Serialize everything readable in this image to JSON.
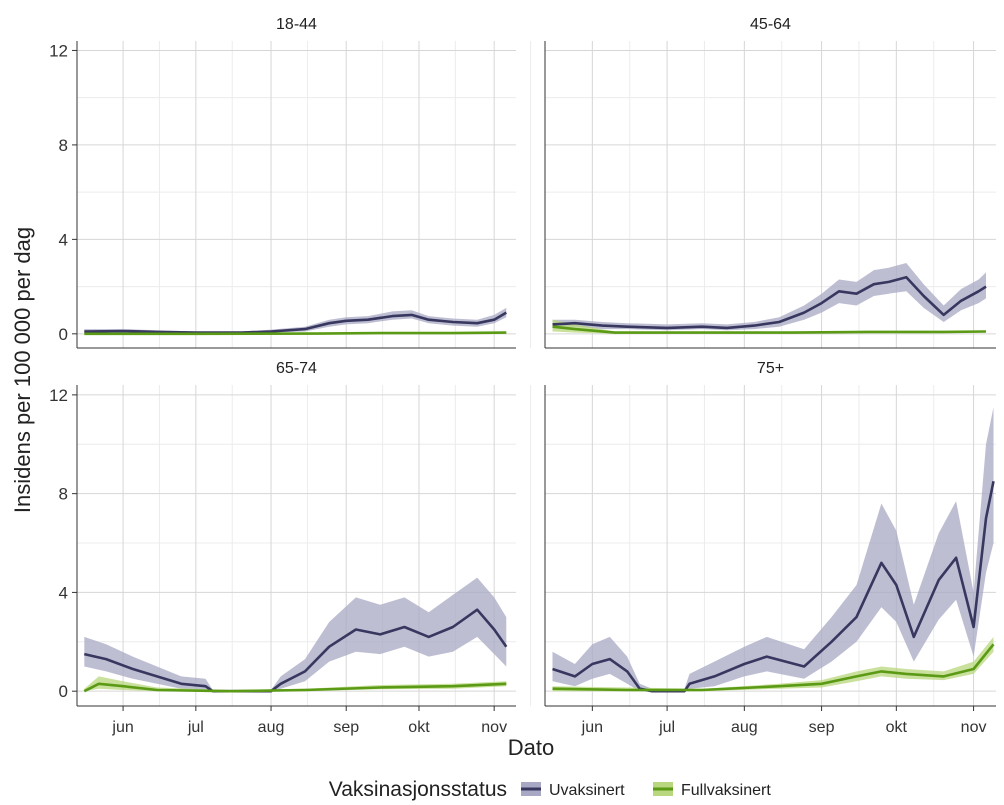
{
  "chart_data": {
    "type": "line",
    "ylabel": "Insidens per 100 000 per dag",
    "xlabel": "Dato",
    "ylim": [
      -0.6,
      12.4
    ],
    "yticks": [
      0,
      4,
      8,
      12
    ],
    "xlim": [
      "2021-05-13",
      "2021-11-10"
    ],
    "xticks": [
      {
        "label": "jun",
        "date": "2021-06-01"
      },
      {
        "label": "jul",
        "date": "2021-07-01"
      },
      {
        "label": "aug",
        "date": "2021-08-01"
      },
      {
        "label": "sep",
        "date": "2021-09-01"
      },
      {
        "label": "okt",
        "date": "2021-10-01"
      },
      {
        "label": "nov",
        "date": "2021-11-01"
      }
    ],
    "grid": true,
    "legend": {
      "position": "bottom",
      "title": "Vaksinasjonsstatus",
      "entries": [
        {
          "name": "Uvaksinert",
          "color": "#38375f",
          "fill": "#a8a8c4"
        },
        {
          "name": "Fullvaksinert",
          "color": "#5a9a14",
          "fill": "#b8d77e"
        }
      ]
    },
    "panels": [
      {
        "title": "18-44",
        "series": [
          {
            "name": "Uvaksinert",
            "points": [
              [
                "2021-05-16",
                0.1,
                0.05,
                0.2
              ],
              [
                "2021-06-01",
                0.12,
                0.05,
                0.2
              ],
              [
                "2021-06-15",
                0.08,
                0.03,
                0.15
              ],
              [
                "2021-07-01",
                0.05,
                0.02,
                0.1
              ],
              [
                "2021-07-20",
                0.05,
                0.02,
                0.1
              ],
              [
                "2021-08-01",
                0.1,
                0.05,
                0.18
              ],
              [
                "2021-08-15",
                0.2,
                0.1,
                0.3
              ],
              [
                "2021-08-25",
                0.45,
                0.3,
                0.6
              ],
              [
                "2021-09-01",
                0.55,
                0.4,
                0.7
              ],
              [
                "2021-09-10",
                0.6,
                0.45,
                0.75
              ],
              [
                "2021-09-20",
                0.75,
                0.6,
                0.95
              ],
              [
                "2021-09-28",
                0.8,
                0.65,
                1.0
              ],
              [
                "2021-10-05",
                0.6,
                0.45,
                0.75
              ],
              [
                "2021-10-15",
                0.5,
                0.35,
                0.65
              ],
              [
                "2021-10-25",
                0.45,
                0.3,
                0.6
              ],
              [
                "2021-11-01",
                0.6,
                0.45,
                0.8
              ],
              [
                "2021-11-06",
                0.9,
                0.7,
                1.1
              ]
            ]
          },
          {
            "name": "Fullvaksinert",
            "points": [
              [
                "2021-05-16",
                0.0,
                0.0,
                0.02
              ],
              [
                "2021-07-01",
                0.0,
                0.0,
                0.02
              ],
              [
                "2021-08-20",
                0.01,
                0.0,
                0.03
              ],
              [
                "2021-09-15",
                0.03,
                0.01,
                0.05
              ],
              [
                "2021-10-15",
                0.03,
                0.01,
                0.05
              ],
              [
                "2021-11-06",
                0.05,
                0.03,
                0.08
              ]
            ]
          }
        ]
      },
      {
        "title": "45-64",
        "series": [
          {
            "name": "Uvaksinert",
            "points": [
              [
                "2021-05-16",
                0.4,
                0.3,
                0.6
              ],
              [
                "2021-05-25",
                0.45,
                0.3,
                0.6
              ],
              [
                "2021-06-05",
                0.35,
                0.2,
                0.5
              ],
              [
                "2021-06-15",
                0.3,
                0.2,
                0.45
              ],
              [
                "2021-07-01",
                0.25,
                0.15,
                0.4
              ],
              [
                "2021-07-15",
                0.3,
                0.2,
                0.45
              ],
              [
                "2021-07-25",
                0.25,
                0.15,
                0.4
              ],
              [
                "2021-08-05",
                0.35,
                0.2,
                0.5
              ],
              [
                "2021-08-15",
                0.5,
                0.3,
                0.7
              ],
              [
                "2021-08-25",
                0.9,
                0.6,
                1.2
              ],
              [
                "2021-09-01",
                1.3,
                0.9,
                1.7
              ],
              [
                "2021-09-08",
                1.8,
                1.3,
                2.3
              ],
              [
                "2021-09-15",
                1.7,
                1.2,
                2.2
              ],
              [
                "2021-09-22",
                2.1,
                1.6,
                2.7
              ],
              [
                "2021-09-28",
                2.2,
                1.7,
                2.8
              ],
              [
                "2021-10-05",
                2.4,
                1.8,
                3.0
              ],
              [
                "2021-10-12",
                1.6,
                1.1,
                2.1
              ],
              [
                "2021-10-20",
                0.8,
                0.5,
                1.2
              ],
              [
                "2021-10-27",
                1.4,
                1.0,
                1.9
              ],
              [
                "2021-11-03",
                1.8,
                1.3,
                2.3
              ],
              [
                "2021-11-06",
                2.0,
                1.5,
                2.6
              ]
            ]
          },
          {
            "name": "Fullvaksinert",
            "points": [
              [
                "2021-05-16",
                0.3,
                0.1,
                0.6
              ],
              [
                "2021-05-25",
                0.2,
                0.05,
                0.4
              ],
              [
                "2021-06-10",
                0.05,
                0.0,
                0.1
              ],
              [
                "2021-07-15",
                0.05,
                0.02,
                0.08
              ],
              [
                "2021-08-20",
                0.05,
                0.02,
                0.08
              ],
              [
                "2021-09-20",
                0.08,
                0.05,
                0.12
              ],
              [
                "2021-10-20",
                0.08,
                0.05,
                0.12
              ],
              [
                "2021-11-06",
                0.1,
                0.06,
                0.14
              ]
            ]
          }
        ]
      },
      {
        "title": "65-74",
        "series": [
          {
            "name": "Uvaksinert",
            "points": [
              [
                "2021-05-16",
                1.5,
                1.0,
                2.2
              ],
              [
                "2021-05-25",
                1.3,
                0.8,
                1.9
              ],
              [
                "2021-06-05",
                0.9,
                0.5,
                1.4
              ],
              [
                "2021-06-15",
                0.6,
                0.3,
                1.0
              ],
              [
                "2021-06-25",
                0.3,
                0.1,
                0.6
              ],
              [
                "2021-07-05",
                0.2,
                0.05,
                0.5
              ],
              [
                "2021-07-08",
                0.0,
                0.0,
                0.05
              ],
              [
                "2021-08-01",
                0.0,
                0.0,
                0.05
              ],
              [
                "2021-08-05",
                0.3,
                0.1,
                0.6
              ],
              [
                "2021-08-15",
                0.8,
                0.4,
                1.3
              ],
              [
                "2021-08-25",
                1.8,
                1.2,
                2.8
              ],
              [
                "2021-09-05",
                2.5,
                1.6,
                3.8
              ],
              [
                "2021-09-15",
                2.3,
                1.5,
                3.5
              ],
              [
                "2021-09-25",
                2.6,
                1.8,
                3.8
              ],
              [
                "2021-10-05",
                2.2,
                1.4,
                3.2
              ],
              [
                "2021-10-15",
                2.6,
                1.6,
                3.9
              ],
              [
                "2021-10-25",
                3.3,
                2.2,
                4.6
              ],
              [
                "2021-11-01",
                2.5,
                1.5,
                3.8
              ],
              [
                "2021-11-06",
                1.8,
                1.0,
                3.0
              ]
            ]
          },
          {
            "name": "Fullvaksinert",
            "points": [
              [
                "2021-05-16",
                0.0,
                0.0,
                0.1
              ],
              [
                "2021-05-22",
                0.3,
                0.1,
                0.6
              ],
              [
                "2021-06-01",
                0.2,
                0.05,
                0.4
              ],
              [
                "2021-06-15",
                0.05,
                0.0,
                0.15
              ],
              [
                "2021-07-15",
                0.0,
                0.0,
                0.05
              ],
              [
                "2021-08-15",
                0.05,
                0.0,
                0.1
              ],
              [
                "2021-09-15",
                0.15,
                0.08,
                0.25
              ],
              [
                "2021-10-15",
                0.2,
                0.1,
                0.3
              ],
              [
                "2021-11-06",
                0.3,
                0.2,
                0.4
              ]
            ]
          }
        ]
      },
      {
        "title": "75+",
        "series": [
          {
            "name": "Uvaksinert",
            "points": [
              [
                "2021-05-16",
                0.9,
                0.4,
                1.6
              ],
              [
                "2021-05-25",
                0.6,
                0.2,
                1.1
              ],
              [
                "2021-06-01",
                1.1,
                0.5,
                1.9
              ],
              [
                "2021-06-08",
                1.3,
                0.7,
                2.2
              ],
              [
                "2021-06-15",
                0.8,
                0.3,
                1.4
              ],
              [
                "2021-06-20",
                0.1,
                0.0,
                0.3
              ],
              [
                "2021-06-25",
                0.0,
                0.0,
                0.1
              ],
              [
                "2021-07-08",
                0.0,
                0.0,
                0.1
              ],
              [
                "2021-07-10",
                0.3,
                0.1,
                0.7
              ],
              [
                "2021-07-20",
                0.6,
                0.2,
                1.2
              ],
              [
                "2021-08-01",
                1.1,
                0.6,
                1.8
              ],
              [
                "2021-08-10",
                1.4,
                0.8,
                2.2
              ],
              [
                "2021-08-25",
                1.0,
                0.5,
                1.7
              ],
              [
                "2021-09-05",
                2.0,
                1.2,
                3.0
              ],
              [
                "2021-09-15",
                3.0,
                2.0,
                4.3
              ],
              [
                "2021-09-25",
                5.2,
                3.4,
                7.6
              ],
              [
                "2021-10-01",
                4.3,
                2.8,
                6.5
              ],
              [
                "2021-10-08",
                2.2,
                1.2,
                3.5
              ],
              [
                "2021-10-18",
                4.5,
                2.9,
                6.4
              ],
              [
                "2021-10-25",
                5.4,
                3.7,
                7.7
              ],
              [
                "2021-11-01",
                2.6,
                1.4,
                4.0
              ],
              [
                "2021-11-06",
                7.0,
                4.8,
                10.0
              ],
              [
                "2021-11-09",
                8.5,
                6.0,
                11.5
              ]
            ]
          },
          {
            "name": "Fullvaksinert",
            "points": [
              [
                "2021-05-16",
                0.1,
                0.0,
                0.2
              ],
              [
                "2021-06-15",
                0.05,
                0.0,
                0.15
              ],
              [
                "2021-07-15",
                0.05,
                0.0,
                0.1
              ],
              [
                "2021-08-15",
                0.2,
                0.1,
                0.3
              ],
              [
                "2021-09-01",
                0.3,
                0.15,
                0.45
              ],
              [
                "2021-09-15",
                0.6,
                0.4,
                0.8
              ],
              [
                "2021-09-25",
                0.8,
                0.6,
                1.0
              ],
              [
                "2021-10-05",
                0.7,
                0.5,
                0.9
              ],
              [
                "2021-10-20",
                0.6,
                0.45,
                0.8
              ],
              [
                "2021-11-01",
                0.9,
                0.7,
                1.2
              ],
              [
                "2021-11-09",
                1.9,
                1.6,
                2.2
              ]
            ]
          }
        ]
      }
    ]
  }
}
